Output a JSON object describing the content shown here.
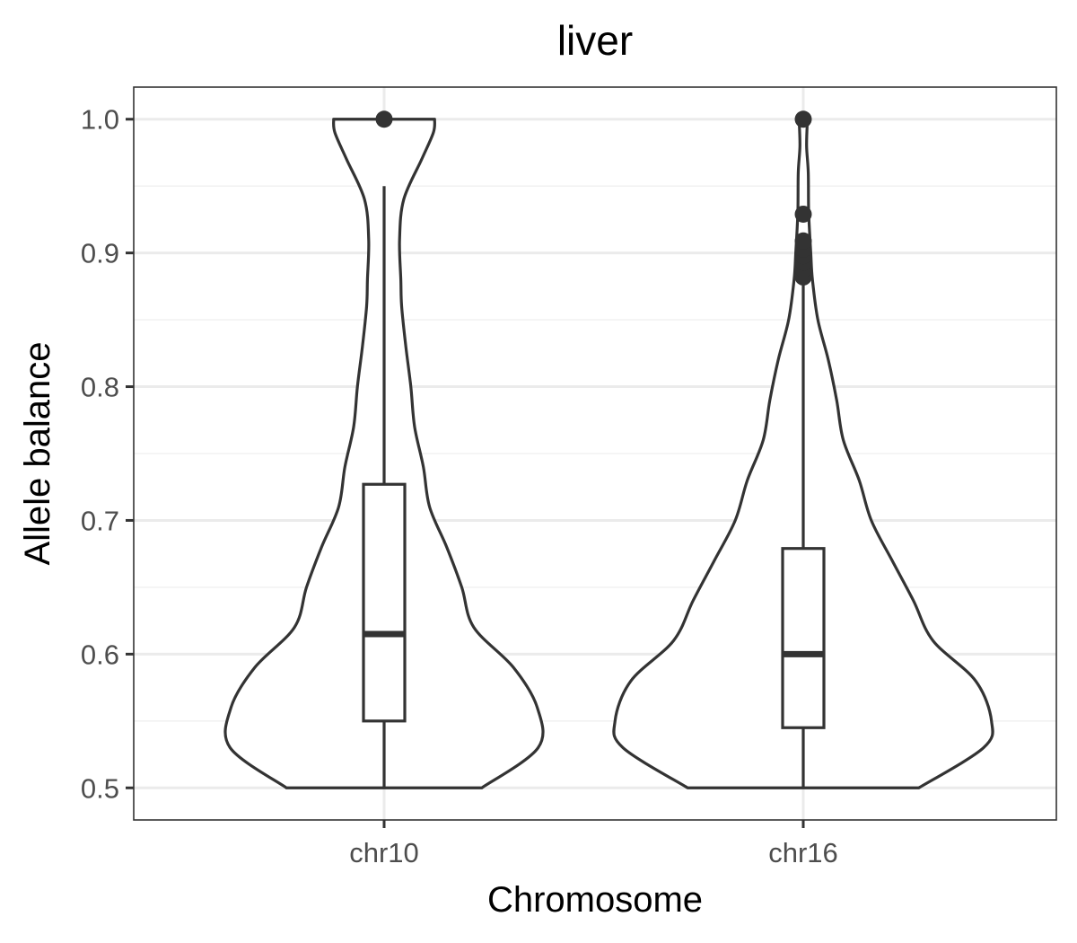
{
  "chart_data": {
    "type": "violin",
    "title": "liver",
    "xlabel": "Chromosome",
    "ylabel": "Allele balance",
    "categories": [
      "chr10",
      "chr16"
    ],
    "ylim": [
      0.476,
      1.024
    ],
    "yticks": [
      0.5,
      0.6,
      0.7,
      0.8,
      0.9,
      1.0
    ],
    "yticklabels": [
      "0.5",
      "0.6",
      "0.7",
      "0.8",
      "0.9",
      "1.0"
    ],
    "grid": true,
    "legend": "none",
    "colors": {
      "stroke": "#333333",
      "fill": "#ffffff",
      "grid": "#ebebeb",
      "text": "#4d4d4d"
    },
    "groups": [
      {
        "category": "chr10",
        "density": [
          [
            0.5,
            0.234
          ],
          [
            0.53,
            0.369
          ],
          [
            0.56,
            0.367
          ],
          [
            0.59,
            0.31
          ],
          [
            0.62,
            0.215
          ],
          [
            0.65,
            0.186
          ],
          [
            0.68,
            0.15
          ],
          [
            0.71,
            0.109
          ],
          [
            0.74,
            0.094
          ],
          [
            0.77,
            0.073
          ],
          [
            0.8,
            0.064
          ],
          [
            0.83,
            0.052
          ],
          [
            0.86,
            0.042
          ],
          [
            0.88,
            0.04
          ],
          [
            0.91,
            0.037
          ],
          [
            0.94,
            0.047
          ],
          [
            0.97,
            0.09
          ],
          [
            0.99,
            0.118
          ],
          [
            1.0,
            0.121
          ]
        ],
        "box": {
          "lower_whisker": 0.5,
          "q1": 0.55,
          "median": 0.615,
          "q3": 0.727,
          "upper_whisker": 0.95
        },
        "outliers": [
          1.0
        ]
      },
      {
        "category": "chr16",
        "density": [
          [
            0.5,
            0.277
          ],
          [
            0.53,
            0.432
          ],
          [
            0.55,
            0.451
          ],
          [
            0.58,
            0.413
          ],
          [
            0.61,
            0.311
          ],
          [
            0.64,
            0.264
          ],
          [
            0.67,
            0.213
          ],
          [
            0.7,
            0.163
          ],
          [
            0.73,
            0.134
          ],
          [
            0.76,
            0.096
          ],
          [
            0.79,
            0.08
          ],
          [
            0.82,
            0.06
          ],
          [
            0.85,
            0.035
          ],
          [
            0.88,
            0.022
          ],
          [
            0.9,
            0.018
          ],
          [
            0.93,
            0.013
          ],
          [
            0.96,
            0.012
          ],
          [
            0.98,
            0.008
          ],
          [
            1.0,
            0.01
          ]
        ],
        "box": {
          "lower_whisker": 0.5,
          "q1": 0.545,
          "median": 0.6,
          "q3": 0.679,
          "upper_whisker": 0.88
        },
        "outliers": [
          0.882,
          0.888,
          0.893,
          0.898,
          0.903,
          0.909,
          0.929,
          1.0
        ]
      }
    ]
  }
}
